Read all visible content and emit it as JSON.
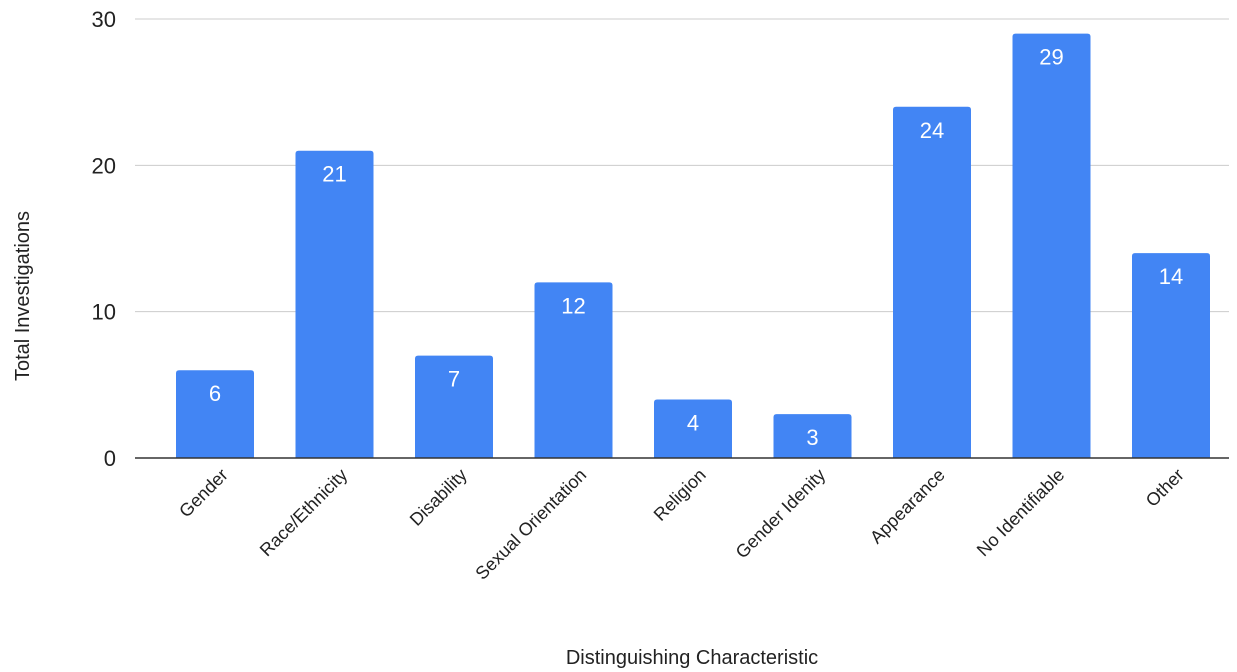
{
  "chart_data": {
    "type": "bar",
    "title": "",
    "xlabel": "Distinguishing Characteristic",
    "ylabel": "Total Investigations",
    "categories": [
      "Gender",
      "Race/Ethnicity",
      "Disability",
      "Sexual Orientation",
      "Religion",
      "Gender Idenity",
      "Appearance",
      "No Identifiable",
      "Other"
    ],
    "values": [
      6,
      21,
      7,
      12,
      4,
      3,
      24,
      29,
      14
    ],
    "ylim": [
      0,
      30
    ],
    "yticks": [
      0,
      10,
      20,
      30
    ],
    "grid": true,
    "legend": "none",
    "bar_color": "#4285f4",
    "data_label_color": "#ffffff"
  }
}
